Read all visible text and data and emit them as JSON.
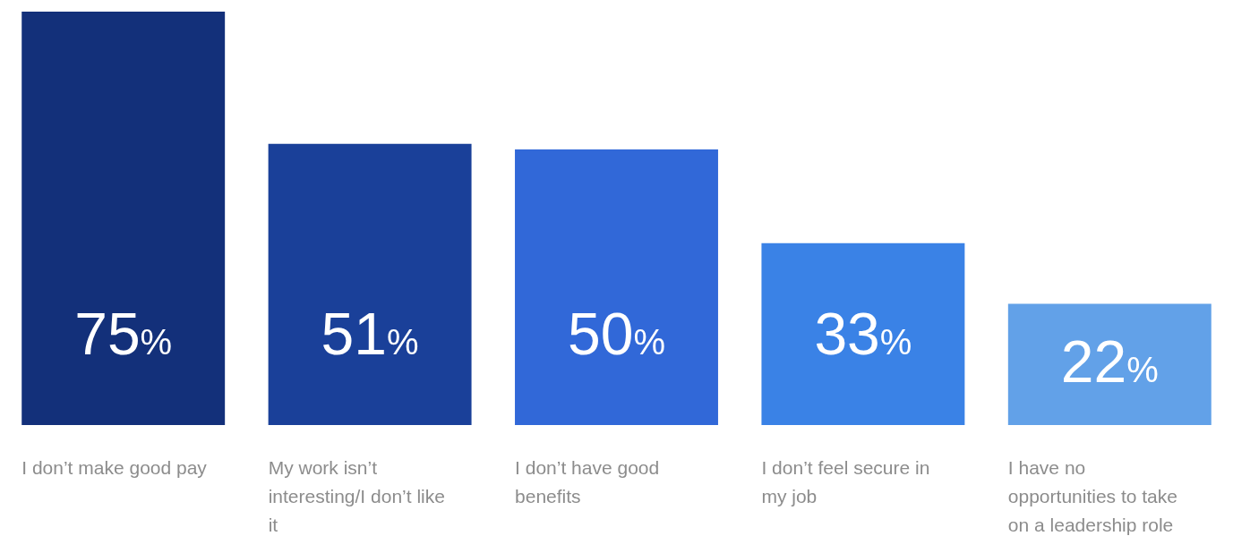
{
  "chart_data": {
    "type": "bar",
    "categories": [
      "I don’t make good pay",
      "My work isn’t interesting/I don’t like it",
      "I don’t have good benefits",
      "I don’t feel secure in my job",
      "I have no opportunities to take on a leadership role"
    ],
    "values": [
      75,
      51,
      50,
      33,
      22
    ],
    "colors": [
      "#13307a",
      "#1a4099",
      "#3168d8",
      "#3a82e6",
      "#62a1e8"
    ],
    "value_labels": [
      "75%",
      "51%",
      "50%",
      "33%",
      "22%"
    ]
  }
}
